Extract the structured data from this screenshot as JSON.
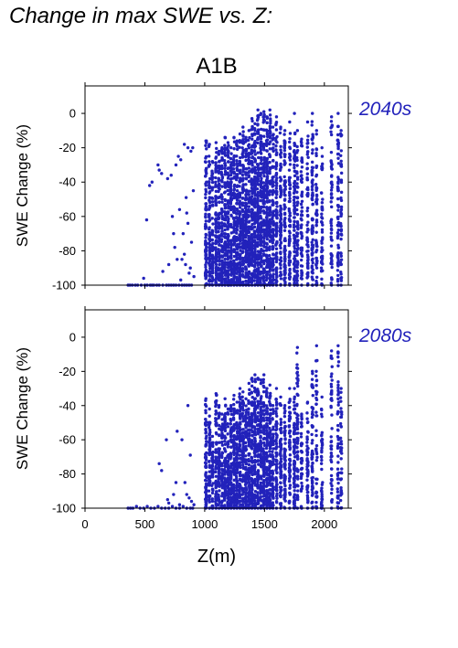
{
  "figure": {
    "title": "Change in max SWE vs. Z:",
    "scenario": "A1B",
    "point_color": "#2222bb"
  },
  "chart_data": [
    {
      "type": "scatter",
      "title": "2040s",
      "xlabel": "",
      "ylabel": "SWE Change (%)",
      "xlim": [
        0,
        2200
      ],
      "ylim": [
        -100,
        16
      ],
      "yticks": [
        0,
        -20,
        -40,
        -60,
        -80,
        -100
      ],
      "xticks": [],
      "series": [
        {
          "x": [
            360,
            375,
            395,
            420,
            440,
            470,
            500,
            520,
            545,
            560,
            575,
            600,
            620,
            650,
            680,
            700,
            720,
            740,
            760,
            785,
            810,
            830,
            850,
            870,
            890,
            830,
            860,
            885,
            800,
            760,
            720,
            690,
            640,
            610,
            560,
            540,
            515,
            490,
            650,
            700,
            750,
            780,
            790,
            810,
            820,
            840,
            850,
            880,
            890,
            870,
            860,
            845,
            800,
            770,
            740,
            730,
            900,
            905,
            910,
            830,
            620
          ],
          "y": [
            -100,
            -100,
            -100,
            -100,
            -100,
            -100,
            -100,
            -100,
            -100,
            -100,
            -100,
            -100,
            -100,
            -100,
            -100,
            -100,
            -100,
            -100,
            -100,
            -100,
            -100,
            -100,
            -100,
            -100,
            -100,
            -18,
            -20,
            -22,
            -27,
            -30,
            -36,
            -38,
            -35,
            -30,
            -40,
            -42,
            -62,
            -96,
            -92,
            -88,
            -78,
            -25,
            -56,
            -85,
            -70,
            -88,
            -58,
            -90,
            -75,
            -93,
            -64,
            -49,
            -97,
            -85,
            -70,
            -60,
            -20,
            -45,
            -95,
            -82,
            -33
          ],
          "bands": [
            {
              "x": 1010,
              "top": -16,
              "density": 90
            },
            {
              "x": 1040,
              "top": -18,
              "density": 80
            },
            {
              "x": 1065,
              "top": -28,
              "density": 70
            },
            {
              "x": 1095,
              "top": -17,
              "density": 90
            },
            {
              "x": 1120,
              "top": -22,
              "density": 80
            },
            {
              "x": 1145,
              "top": -20,
              "density": 80
            },
            {
              "x": 1170,
              "top": -14,
              "density": 90
            },
            {
              "x": 1195,
              "top": -17,
              "density": 90
            },
            {
              "x": 1220,
              "top": -20,
              "density": 90
            },
            {
              "x": 1245,
              "top": -14,
              "density": 100
            },
            {
              "x": 1270,
              "top": -16,
              "density": 100
            },
            {
              "x": 1295,
              "top": -12,
              "density": 100
            },
            {
              "x": 1320,
              "top": -8,
              "density": 100
            },
            {
              "x": 1345,
              "top": -14,
              "density": 110
            },
            {
              "x": 1370,
              "top": -10,
              "density": 110
            },
            {
              "x": 1395,
              "top": -3,
              "density": 120
            },
            {
              "x": 1420,
              "top": -6,
              "density": 120
            },
            {
              "x": 1445,
              "top": 2,
              "density": 120
            },
            {
              "x": 1470,
              "top": 0,
              "density": 120
            },
            {
              "x": 1495,
              "top": 1,
              "density": 110
            },
            {
              "x": 1520,
              "top": -2,
              "density": 120
            },
            {
              "x": 1545,
              "top": 2,
              "density": 100
            },
            {
              "x": 1570,
              "top": -8,
              "density": 90
            },
            {
              "x": 1600,
              "top": -2,
              "density": 90
            },
            {
              "x": 1635,
              "top": -8,
              "density": 80
            },
            {
              "x": 1670,
              "top": -10,
              "density": 90
            },
            {
              "x": 1710,
              "top": -5,
              "density": 80
            },
            {
              "x": 1750,
              "top": 0,
              "density": 90
            },
            {
              "x": 1775,
              "top": -10,
              "density": 70
            },
            {
              "x": 1810,
              "top": -15,
              "density": 60
            },
            {
              "x": 1860,
              "top": -5,
              "density": 60
            },
            {
              "x": 1900,
              "top": 0,
              "density": 80
            },
            {
              "x": 1935,
              "top": -10,
              "density": 60
            },
            {
              "x": 1980,
              "top": -20,
              "density": 50
            },
            {
              "x": 2060,
              "top": -2,
              "density": 60
            },
            {
              "x": 2115,
              "top": 0,
              "density": 60
            },
            {
              "x": 2140,
              "top": -10,
              "density": 50
            }
          ]
        }
      ]
    },
    {
      "type": "scatter",
      "title": "2080s",
      "xlabel": "Z(m)",
      "ylabel": "SWE Change (%)",
      "xlim": [
        0,
        2200
      ],
      "ylim": [
        -100,
        16
      ],
      "yticks": [
        0,
        -20,
        -40,
        -60,
        -80,
        -100
      ],
      "xticks": [
        0,
        500,
        1000,
        1500,
        2000
      ],
      "series": [
        {
          "x": [
            360,
            380,
            400,
            430,
            460,
            490,
            520,
            550,
            580,
            610,
            640,
            670,
            700,
            730,
            760,
            790,
            820,
            850,
            880,
            900,
            910,
            890,
            870,
            850,
            810,
            790,
            770,
            760,
            740,
            700,
            690,
            680,
            640,
            620,
            860,
            880,
            835
          ],
          "y": [
            -100,
            -100,
            -100,
            -99,
            -100,
            -100,
            -99,
            -100,
            -100,
            -99,
            -100,
            -100,
            -100,
            -99,
            -100,
            -100,
            -99,
            -100,
            -100,
            -100,
            -98,
            -96,
            -94,
            -92,
            -60,
            -98,
            -55,
            -85,
            -92,
            -97,
            -95,
            -60,
            -78,
            -74,
            -40,
            -69,
            -85
          ],
          "bands": [
            {
              "x": 1010,
              "top": -36,
              "density": 70
            },
            {
              "x": 1040,
              "top": -42,
              "density": 60
            },
            {
              "x": 1065,
              "top": -58,
              "density": 50
            },
            {
              "x": 1095,
              "top": -33,
              "density": 70
            },
            {
              "x": 1120,
              "top": -40,
              "density": 60
            },
            {
              "x": 1145,
              "top": -45,
              "density": 60
            },
            {
              "x": 1170,
              "top": -36,
              "density": 70
            },
            {
              "x": 1195,
              "top": -42,
              "density": 70
            },
            {
              "x": 1220,
              "top": -40,
              "density": 70
            },
            {
              "x": 1245,
              "top": -34,
              "density": 80
            },
            {
              "x": 1270,
              "top": -38,
              "density": 80
            },
            {
              "x": 1295,
              "top": -30,
              "density": 80
            },
            {
              "x": 1320,
              "top": -32,
              "density": 80
            },
            {
              "x": 1345,
              "top": -36,
              "density": 80
            },
            {
              "x": 1370,
              "top": -27,
              "density": 90
            },
            {
              "x": 1395,
              "top": -24,
              "density": 90
            },
            {
              "x": 1420,
              "top": -22,
              "density": 90
            },
            {
              "x": 1445,
              "top": -24,
              "density": 90
            },
            {
              "x": 1470,
              "top": -25,
              "density": 90
            },
            {
              "x": 1495,
              "top": -22,
              "density": 90
            },
            {
              "x": 1520,
              "top": -30,
              "density": 90
            },
            {
              "x": 1545,
              "top": -28,
              "density": 80
            },
            {
              "x": 1570,
              "top": -40,
              "density": 60
            },
            {
              "x": 1600,
              "top": -30,
              "density": 70
            },
            {
              "x": 1635,
              "top": -35,
              "density": 60
            },
            {
              "x": 1670,
              "top": -40,
              "density": 70
            },
            {
              "x": 1710,
              "top": -30,
              "density": 60
            },
            {
              "x": 1750,
              "top": -30,
              "density": 70
            },
            {
              "x": 1775,
              "top": -6,
              "density": 60
            },
            {
              "x": 1810,
              "top": -45,
              "density": 40
            },
            {
              "x": 1860,
              "top": -38,
              "density": 50
            },
            {
              "x": 1900,
              "top": -20,
              "density": 60
            },
            {
              "x": 1935,
              "top": -5,
              "density": 40
            },
            {
              "x": 1980,
              "top": -35,
              "density": 40
            },
            {
              "x": 2060,
              "top": -8,
              "density": 50
            },
            {
              "x": 2115,
              "top": -5,
              "density": 50
            },
            {
              "x": 2140,
              "top": -30,
              "density": 40
            }
          ]
        }
      ]
    }
  ]
}
